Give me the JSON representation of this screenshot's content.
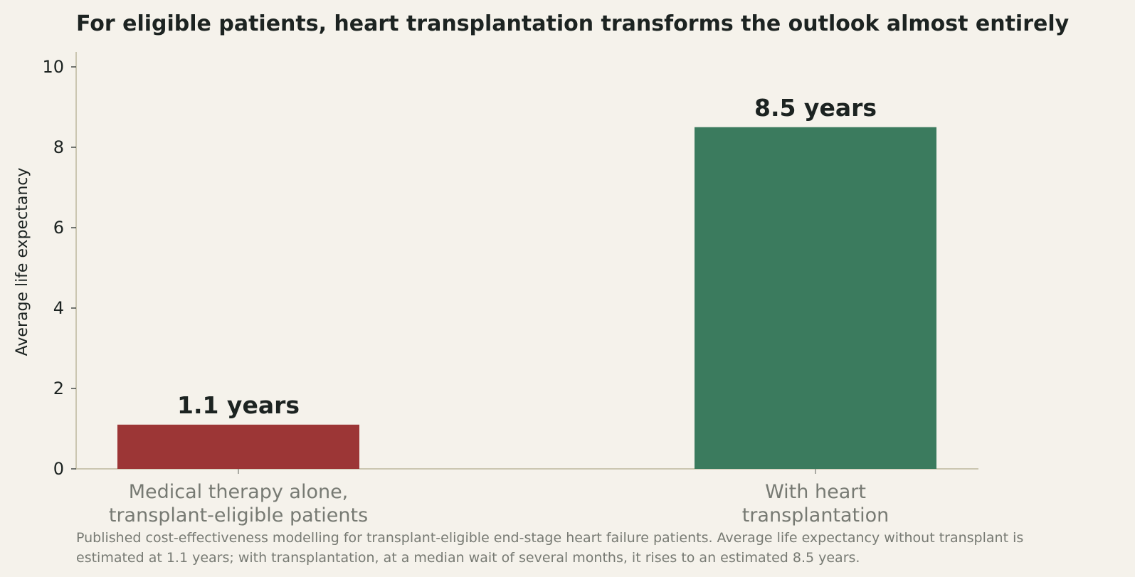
{
  "chart_data": {
    "type": "bar",
    "title": "For eligible patients, heart transplantation transforms the outlook almost entirely",
    "ylabel": "Average life expectancy",
    "xlabel": "",
    "categories": [
      [
        "Medical therapy alone,",
        "transplant-eligible patients"
      ],
      [
        "With heart",
        "transplantation"
      ]
    ],
    "values": [
      1.1,
      8.5
    ],
    "value_labels": [
      "1.1 years",
      "8.5 years"
    ],
    "colors": [
      "#9c3636",
      "#3b7b5e"
    ],
    "ylim": [
      0,
      10.5
    ],
    "yticks": [
      0,
      2,
      4,
      6,
      8,
      10
    ],
    "grid": false,
    "caption": [
      "Published cost-effectiveness modelling for transplant-eligible end-stage heart failure patients. Average life expectancy without transplant is",
      "estimated at 1.1 years; with transplantation, at a median wait of several months, it rises to an estimated 8.5 years."
    ]
  }
}
